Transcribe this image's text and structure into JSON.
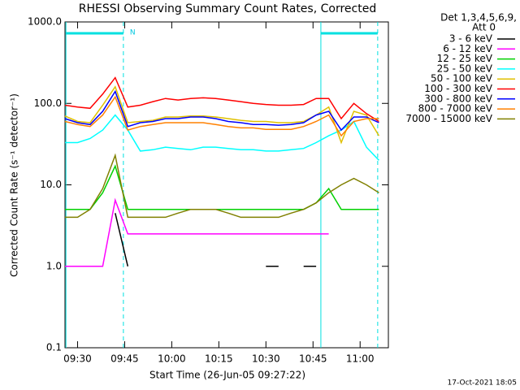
{
  "chart_data": {
    "type": "line",
    "title": "RHESSI Observing Summary Count Rates, Corrected",
    "x_label": "Start Time (26-Jun-05 09:27:22)",
    "y_label": "Corrected Count Rate (s⁻¹ detector⁻¹)",
    "legend_header": [
      "Det 1,3,4,5,6,9,",
      "Att 0"
    ],
    "footer": "17-Oct-2021 18:05",
    "log_y": true,
    "xlim": [
      566,
      669
    ],
    "xticks": [
      {
        "value": 570,
        "label": "09:30"
      },
      {
        "value": 585,
        "label": "09:45"
      },
      {
        "value": 600,
        "label": "10:00"
      },
      {
        "value": 615,
        "label": "10:15"
      },
      {
        "value": 630,
        "label": "10:30"
      },
      {
        "value": 645,
        "label": "10:45"
      },
      {
        "value": 660,
        "label": "11:00"
      }
    ],
    "ylim": [
      0.1,
      1000
    ],
    "yticks": [
      0.1,
      {
        "value": 1,
        "label": "1.0"
      },
      {
        "value": 10,
        "label": "10.0"
      },
      {
        "value": 100,
        "label": "100.0"
      },
      {
        "value": 1000,
        "label": "1000.0"
      }
    ],
    "intervals": [
      {
        "start": 566.3,
        "end": 584.6,
        "label": "N"
      },
      {
        "start": 647.5,
        "end": 665.6
      }
    ],
    "x": [
      566,
      570,
      574,
      578,
      582,
      586,
      590,
      594,
      598,
      602,
      606,
      610,
      614,
      618,
      622,
      626,
      630,
      634,
      638,
      642,
      646,
      650,
      654,
      658,
      662,
      666
    ],
    "series": [
      {
        "name": "3 - 6 keV",
        "color": "#000000",
        "values": [
          null,
          null,
          null,
          null,
          4.5,
          1,
          null,
          null,
          null,
          null,
          null,
          null,
          null,
          null,
          null,
          null,
          1,
          1,
          null,
          1,
          1,
          null,
          null,
          null,
          null,
          null
        ]
      },
      {
        "name": "6 - 12 keV",
        "color": "#ff00ff",
        "values": [
          1,
          1,
          1,
          1,
          6.5,
          2.5,
          2.5,
          2.5,
          2.5,
          2.5,
          2.5,
          2.5,
          2.5,
          2.5,
          2.5,
          2.5,
          2.5,
          2.5,
          2.5,
          2.5,
          2.5,
          2.5,
          null,
          null,
          null,
          null
        ]
      },
      {
        "name": "12 - 25 keV",
        "color": "#00d000",
        "values": [
          5,
          5,
          5,
          8,
          17,
          5,
          5,
          5,
          5,
          5,
          5,
          5,
          5,
          5,
          5,
          5,
          5,
          5,
          5,
          5,
          6,
          9,
          5,
          5,
          5,
          5
        ]
      },
      {
        "name": "25 - 50 keV",
        "color": "#00ffff",
        "values": [
          33,
          33,
          37,
          47,
          72,
          47,
          26,
          27,
          29,
          28,
          27,
          29,
          29,
          28,
          27,
          27,
          26,
          26,
          27,
          28,
          33,
          40,
          47,
          60,
          29,
          20
        ]
      },
      {
        "name": "50 - 100 keV",
        "color": "#e0c000",
        "values": [
          70,
          60,
          58,
          95,
          160,
          58,
          60,
          62,
          68,
          68,
          70,
          70,
          68,
          65,
          62,
          60,
          60,
          58,
          58,
          60,
          72,
          90,
          33,
          80,
          72,
          40
        ]
      },
      {
        "name": "100 - 300 keV",
        "color": "#ff0000",
        "values": [
          95,
          90,
          87,
          130,
          207,
          90,
          95,
          105,
          115,
          110,
          115,
          117,
          115,
          110,
          105,
          100,
          97,
          95,
          95,
          97,
          115,
          115,
          65,
          100,
          75,
          60
        ]
      },
      {
        "name": "300 - 800 keV",
        "color": "#0000ff",
        "values": [
          65,
          58,
          55,
          80,
          140,
          52,
          58,
          60,
          65,
          65,
          68,
          68,
          65,
          60,
          58,
          55,
          55,
          54,
          55,
          58,
          72,
          80,
          47,
          68,
          68,
          58
        ]
      },
      {
        "name": "800 - 7000 keV",
        "color": "#ff8000",
        "values": [
          60,
          55,
          52,
          72,
          120,
          47,
          52,
          55,
          58,
          58,
          58,
          58,
          55,
          52,
          50,
          50,
          48,
          48,
          48,
          52,
          60,
          72,
          40,
          60,
          65,
          65
        ]
      },
      {
        "name": "7000 - 15000 keV",
        "color": "#808000",
        "values": [
          4,
          4,
          5,
          9,
          23,
          4,
          4,
          4,
          4,
          4.5,
          5,
          5,
          5,
          4.5,
          4,
          4,
          4,
          4,
          4.5,
          5,
          6,
          8,
          10,
          12,
          10,
          8
        ]
      }
    ]
  }
}
